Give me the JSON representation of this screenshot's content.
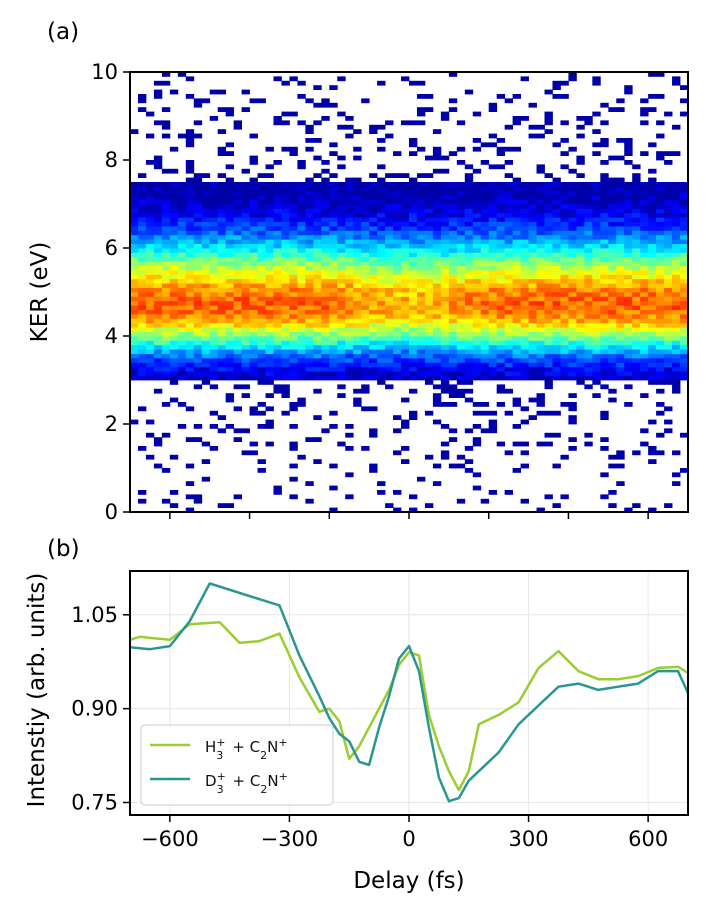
{
  "panel_a": {
    "label": "(a)",
    "chart_data": {
      "type": "heatmap",
      "ylabel": "KER (eV)",
      "xlim": [
        -700,
        700
      ],
      "ylim": [
        0,
        10
      ],
      "yticks": [
        0,
        2,
        4,
        6,
        8,
        10
      ],
      "xticks": [
        -600,
        -400,
        -200,
        0,
        200,
        400,
        600
      ],
      "colormap": "jet",
      "band": {
        "center": 4.7,
        "low": 3.0,
        "high": 7.5
      },
      "bins": {
        "delay_step": 20,
        "ker_step": 0.1
      }
    }
  },
  "panel_b": {
    "label": "(b)",
    "chart_data": {
      "type": "line",
      "xlabel": "Delay (fs)",
      "ylabel": "Intenstiy (arb. units)",
      "xlim": [
        -700,
        700
      ],
      "ylim": [
        0.73,
        1.12
      ],
      "xticks": [
        -600,
        -300,
        0,
        300,
        600
      ],
      "xtick_labels": [
        "−600",
        "−300",
        "0",
        "300",
        "600"
      ],
      "yticks": [
        0.75,
        0.9,
        1.05
      ],
      "ytick_labels": [
        "0.75",
        "0.90",
        "1.05"
      ],
      "grid": true,
      "legend_position": "bottom-left",
      "series": [
        {
          "name": "H3+ + C2N+",
          "legend_main": "H",
          "legend_sub": "3",
          "legend_sup": "+",
          "legend_rest": " + C",
          "legend_sub2": "2",
          "legend_tail": "N",
          "legend_sup2": "+",
          "color": "#9acd32",
          "x": [
            -700,
            -675,
            -650,
            -600,
            -550,
            -500,
            -475,
            -425,
            -375,
            -325,
            -275,
            -225,
            -200,
            -175,
            -150,
            -125,
            -100,
            -75,
            -50,
            -25,
            0,
            25,
            50,
            75,
            100,
            125,
            150,
            175,
            225,
            275,
            325,
            375,
            425,
            475,
            525,
            575,
            625,
            675,
            700
          ],
          "y": [
            1.01,
            1.015,
            1.013,
            1.01,
            1.035,
            1.037,
            1.038,
            1.005,
            1.008,
            1.02,
            0.95,
            0.895,
            0.9,
            0.88,
            0.82,
            0.84,
            0.87,
            0.9,
            0.93,
            0.97,
            0.99,
            0.985,
            0.89,
            0.84,
            0.8,
            0.77,
            0.8,
            0.875,
            0.89,
            0.91,
            0.965,
            0.992,
            0.96,
            0.947,
            0.947,
            0.952,
            0.965,
            0.967,
            0.957
          ]
        },
        {
          "name": "D3+ + C2N+",
          "legend_main": "D",
          "legend_sub": "3",
          "legend_sup": "+",
          "legend_rest": " + C",
          "legend_sub2": "2",
          "legend_tail": "N",
          "legend_sup2": "+",
          "color": "#2a9690",
          "x": [
            -700,
            -650,
            -600,
            -550,
            -500,
            -475,
            -425,
            -375,
            -325,
            -275,
            -225,
            -200,
            -175,
            -150,
            -125,
            -100,
            -75,
            -50,
            -25,
            0,
            25,
            50,
            75,
            100,
            125,
            150,
            175,
            225,
            275,
            325,
            375,
            425,
            475,
            525,
            575,
            625,
            675,
            700
          ],
          "y": [
            0.998,
            0.995,
            1.0,
            1.04,
            1.1,
            1.095,
            1.085,
            1.075,
            1.065,
            0.985,
            0.92,
            0.885,
            0.86,
            0.848,
            0.815,
            0.81,
            0.87,
            0.92,
            0.98,
            1.0,
            0.96,
            0.87,
            0.79,
            0.752,
            0.757,
            0.785,
            0.8,
            0.83,
            0.875,
            0.905,
            0.935,
            0.94,
            0.93,
            0.935,
            0.94,
            0.96,
            0.96,
            0.925
          ]
        }
      ]
    }
  }
}
